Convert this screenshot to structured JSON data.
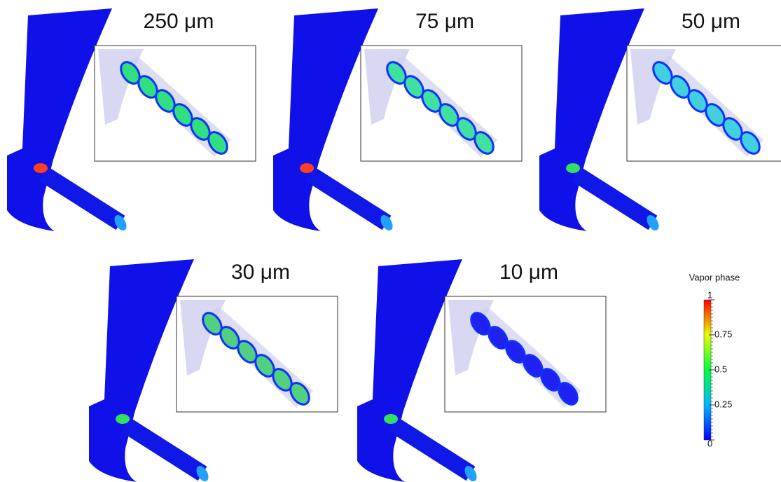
{
  "panels": [
    {
      "label": "250 μm"
    },
    {
      "label": "75 μm"
    },
    {
      "label": "50 μm"
    },
    {
      "label": "30 μm"
    },
    {
      "label": "10 μm"
    }
  ],
  "colorbar": {
    "title": "Vapor phase",
    "ticks": [
      0,
      0.25,
      0.5,
      0.75,
      1
    ]
  }
}
